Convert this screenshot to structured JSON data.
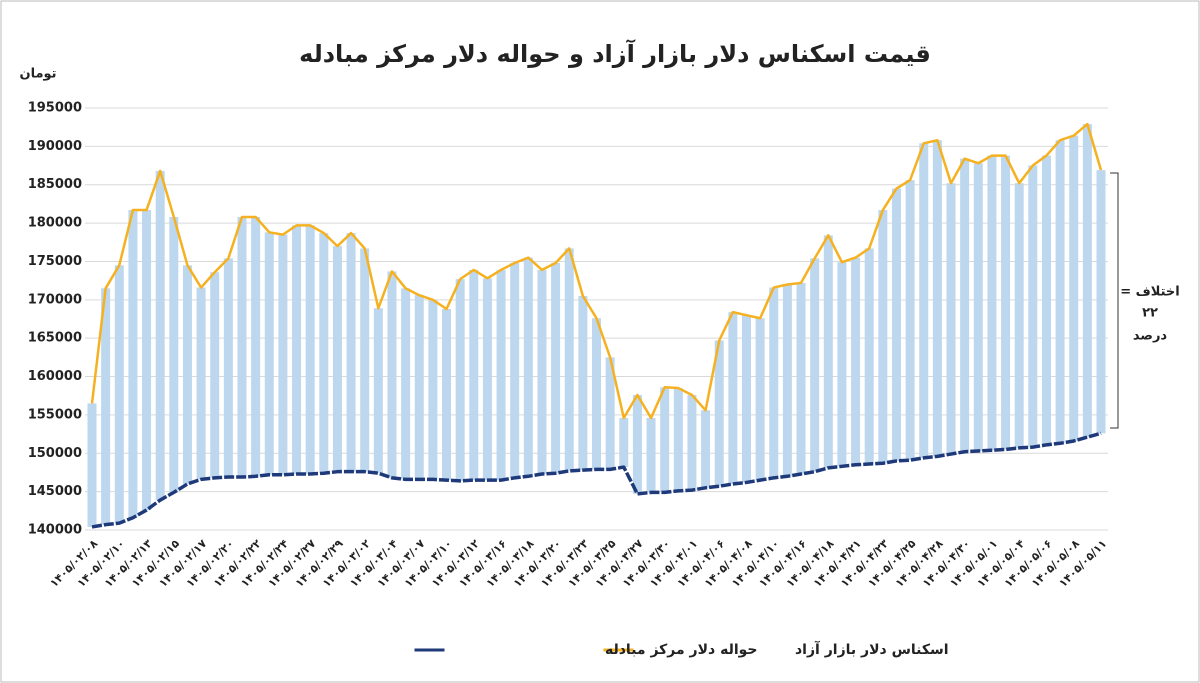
{
  "chart_data": {
    "type": "line",
    "title": "قیمت اسکناس دلار بازار آزاد و حواله دلار مرکز مبادله",
    "y_label": "تومان",
    "annotation_lines": [
      "اختلاف =",
      "۲۲",
      "درصد"
    ],
    "categories": [
      "۱۴۰۵/۰۲/۰۸",
      null,
      "۱۴۰۵/۰۲/۱۰",
      null,
      "۱۴۰۵/۰۲/۱۳",
      null,
      "۱۴۰۵/۰۲/۱۵",
      null,
      "۱۴۰۵/۰۲/۱۷",
      null,
      "۱۴۰۵/۰۲/۲۰",
      null,
      "۱۴۰۵/۰۲/۲۲",
      null,
      "۱۴۰۵/۰۲/۲۴",
      null,
      "۱۴۰۵/۰۲/۲۷",
      null,
      "۱۴۰۵/۰۲/۲۹",
      null,
      "۱۴۰۵/۰۳/۰۲",
      null,
      "۱۴۰۵/۰۳/۰۴",
      null,
      "۱۴۰۵/۰۳/۰۷",
      null,
      "۱۴۰۵/۰۳/۱۰",
      null,
      "۱۴۰۵/۰۳/۱۲",
      null,
      "۱۴۰۵/۰۳/۱۶",
      null,
      "۱۴۰۵/۰۳/۱۸",
      null,
      "۱۴۰۵/۰۳/۲۰",
      null,
      "۱۴۰۵/۰۳/۲۳",
      null,
      "۱۴۰۵/۰۳/۲۵",
      null,
      "۱۴۰۵/۰۳/۲۷",
      null,
      "۱۴۰۵/۰۳/۳۰",
      null,
      "۱۴۰۵/۰۴/۰۱",
      null,
      "۱۴۰۵/۰۴/۰۶",
      null,
      "۱۴۰۵/۰۴/۰۸",
      null,
      "۱۴۰۵/۰۴/۱۰",
      null,
      "۱۴۰۵/۰۴/۱۶",
      null,
      "۱۴۰۵/۰۴/۱۸",
      null,
      "۱۴۰۵/۰۴/۲۱",
      null,
      "۱۴۰۵/۰۴/۲۳",
      null,
      "۱۴۰۵/۰۴/۲۵",
      null,
      "۱۴۰۵/۰۴/۲۸",
      null,
      "۱۴۰۵/۰۴/۳۰",
      null,
      "۱۴۰۵/۰۵/۰۱",
      null,
      "۱۴۰۵/۰۵/۰۴",
      null,
      "۱۴۰۵/۰۵/۰۶",
      null,
      "۱۴۰۵/۰۵/۰۸",
      null,
      "۱۴۰۵/۰۵/۱۱"
    ],
    "series": [
      {
        "name": "اسکناس دلار بازار آزاد",
        "color": "#f5b120",
        "values": [
          156500,
          171500,
          174500,
          181700,
          181700,
          186800,
          180800,
          174500,
          171600,
          173600,
          175400,
          180800,
          180800,
          178800,
          178500,
          179700,
          179700,
          178700,
          177000,
          178700,
          176700,
          168900,
          173700,
          171500,
          170600,
          170000,
          168800,
          172700,
          173900,
          172800,
          173900,
          174800,
          175500,
          173900,
          174800,
          176700,
          170500,
          167600,
          162500,
          154600,
          157600,
          154600,
          158600,
          158500,
          157600,
          155600,
          164700,
          168400,
          168000,
          167600,
          171600,
          172000,
          172200,
          175400,
          178400,
          174900,
          175500,
          176700,
          181700,
          184500,
          185600,
          190400,
          190800,
          185200,
          188400,
          187800,
          188800,
          188800,
          185200,
          187500,
          188800,
          190800,
          191400,
          192900,
          186900
        ]
      },
      {
        "name": "حواله دلار مرکز مبادله",
        "color": "#1f3a7a",
        "values": [
          140400,
          140700,
          140900,
          141600,
          142600,
          143900,
          144900,
          146000,
          146600,
          146800,
          146900,
          146900,
          147000,
          147200,
          147200,
          147300,
          147300,
          147400,
          147600,
          147600,
          147600,
          147400,
          146800,
          146600,
          146600,
          146600,
          146500,
          146400,
          146500,
          146500,
          146500,
          146800,
          147000,
          147300,
          147400,
          147700,
          147800,
          147900,
          147900,
          148200,
          144700,
          144900,
          144900,
          145100,
          145200,
          145500,
          145700,
          146000,
          146200,
          146500,
          146800,
          147000,
          147300,
          147600,
          148100,
          148300,
          148500,
          148600,
          148700,
          149000,
          149100,
          149400,
          149600,
          149900,
          150200,
          150300,
          150400,
          150500,
          150700,
          150800,
          151100,
          151300,
          151600,
          152100,
          152600
        ]
      }
    ],
    "bar_color": "#bdd7ee",
    "ylim": [
      140000,
      195000
    ],
    "yticks": [
      140000,
      145000,
      150000,
      155000,
      160000,
      165000,
      170000,
      175000,
      180000,
      185000,
      190000,
      195000
    ],
    "grid": true
  }
}
